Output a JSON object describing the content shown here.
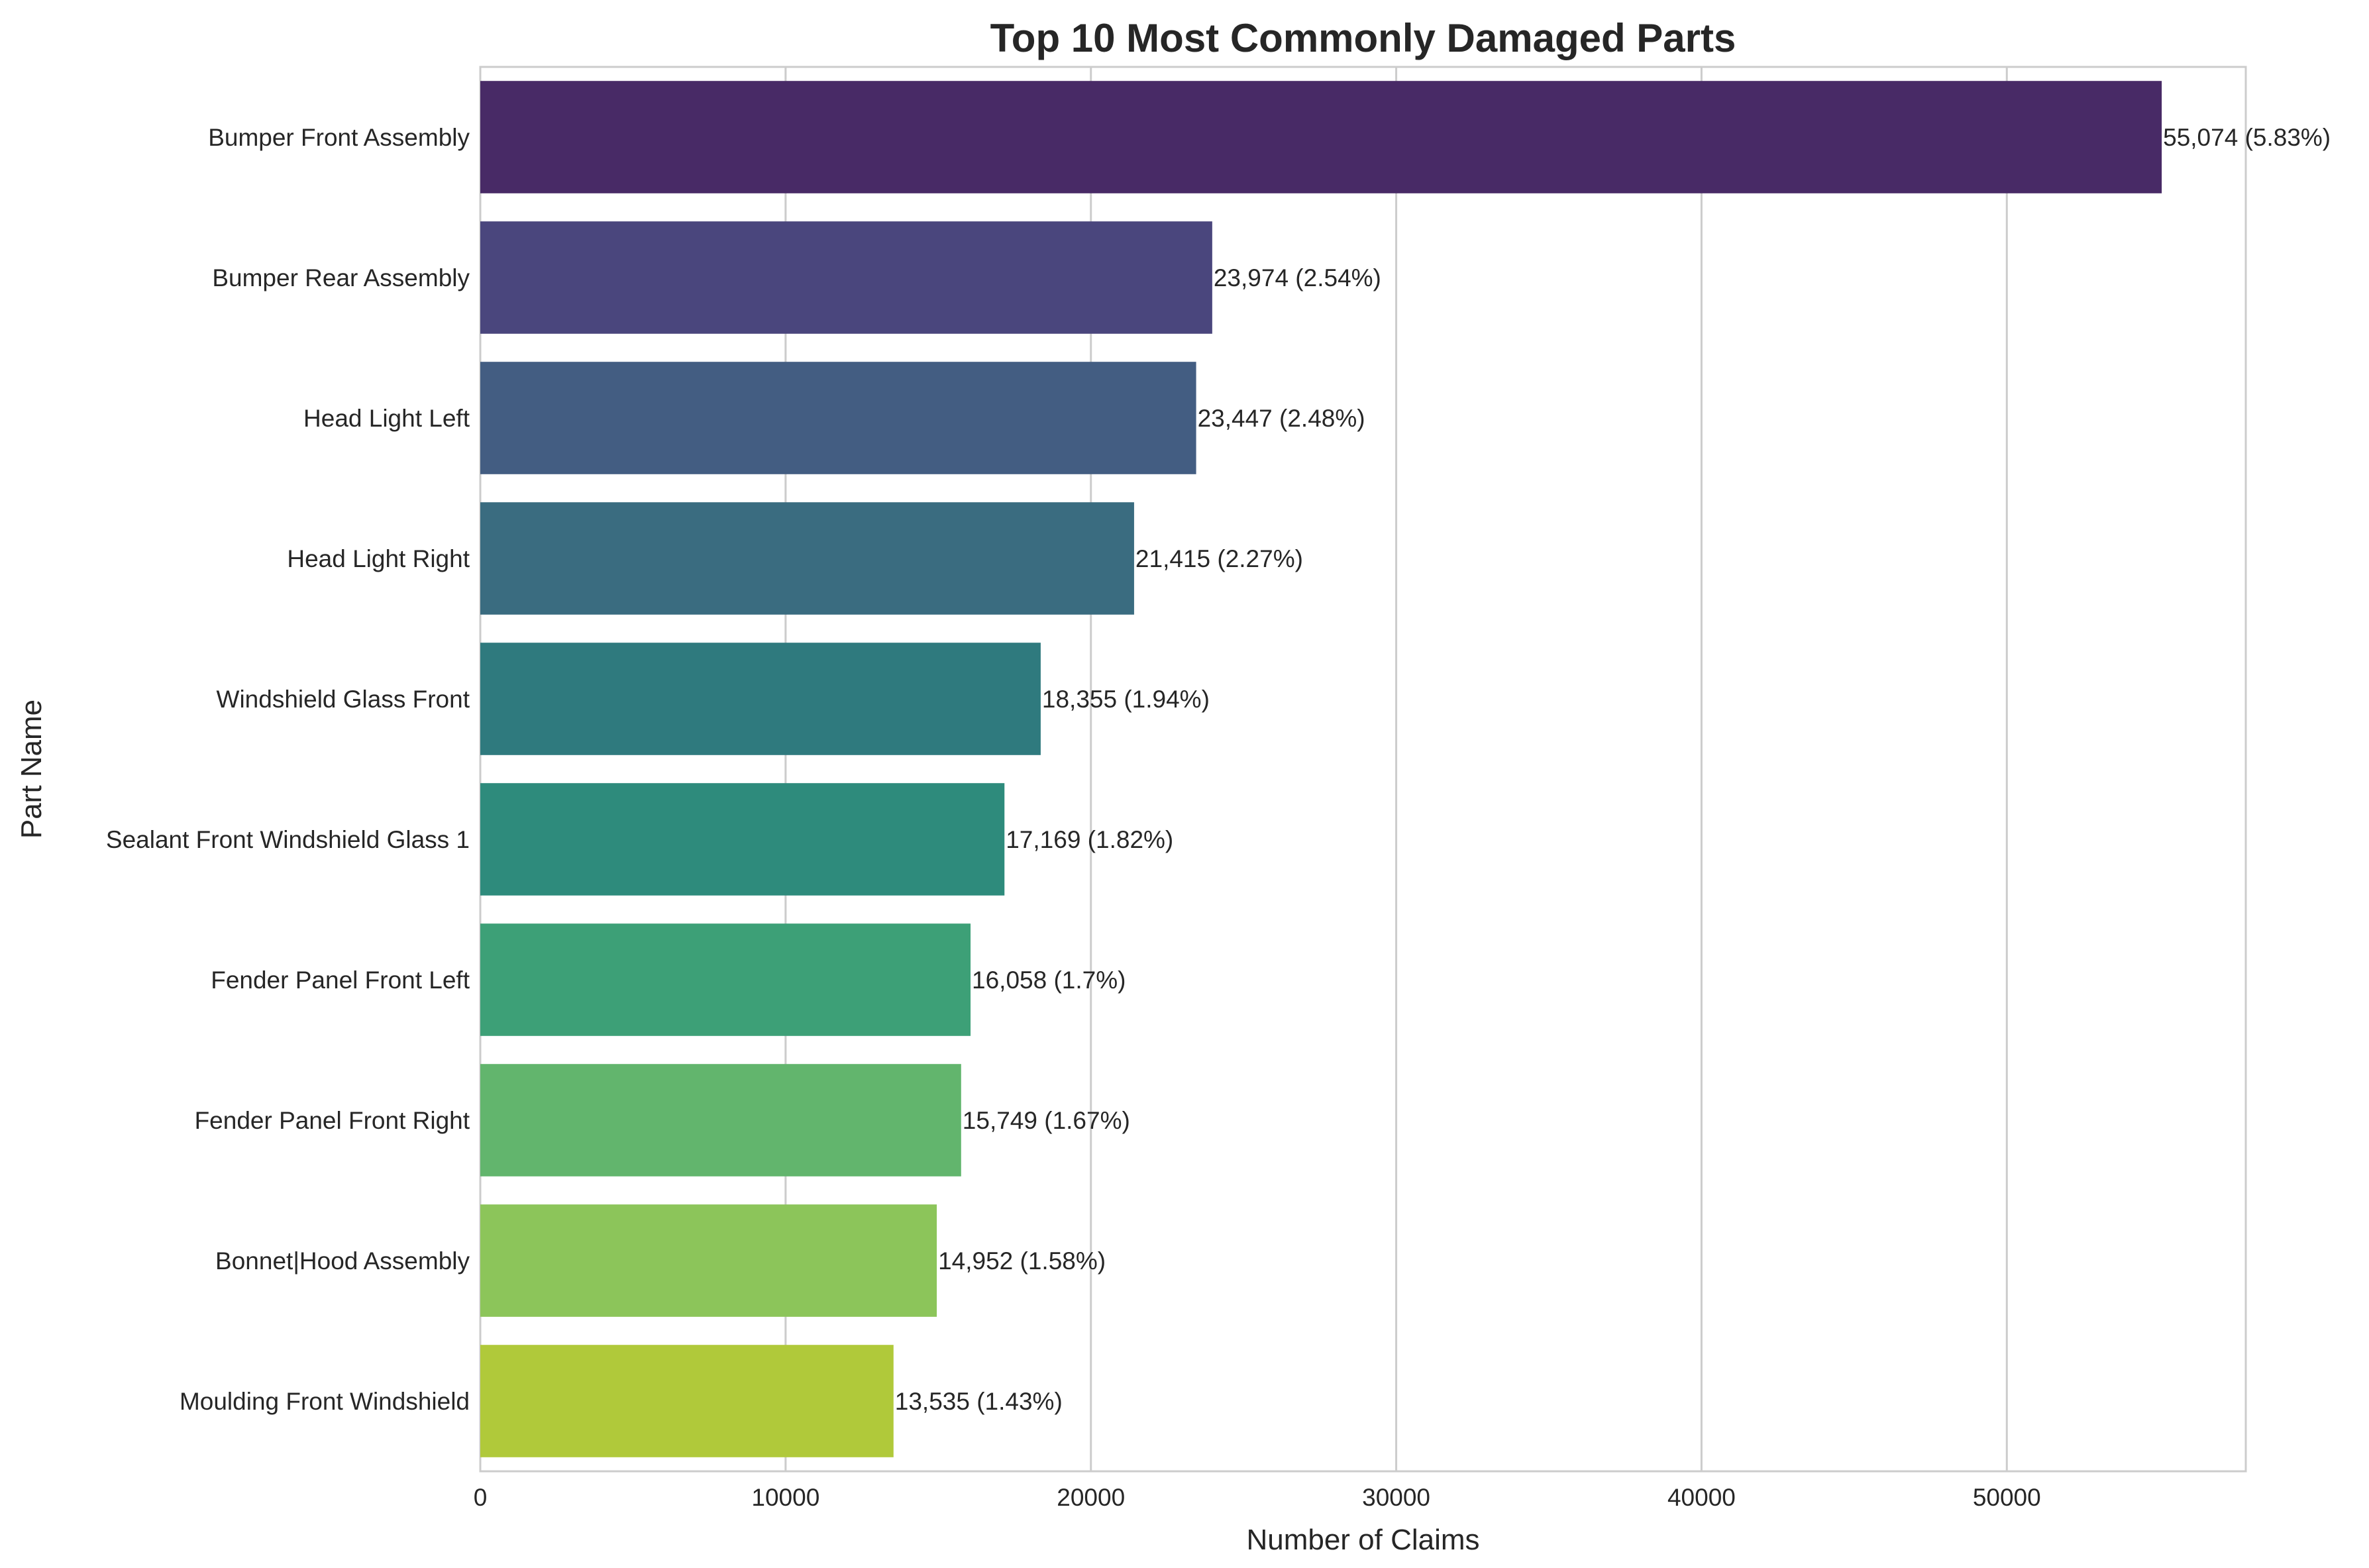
{
  "chart_data": {
    "type": "bar",
    "orientation": "horizontal",
    "title": "Top 10 Most Commonly Damaged Parts",
    "xlabel": "Number of Claims",
    "ylabel": "Part Name",
    "xlim": [
      0,
      57827
    ],
    "xticks": [
      0,
      10000,
      20000,
      30000,
      40000,
      50000
    ],
    "xtick_labels": [
      "0",
      "10000",
      "20000",
      "30000",
      "40000",
      "50000"
    ],
    "grid": "vertical",
    "categories": [
      "Bumper Front Assembly",
      "Bumper Rear Assembly",
      "Head Light Left",
      "Head Light Right",
      "Windshield Glass Front",
      "Sealant Front Windshield Glass 1",
      "Fender Panel Front Left",
      "Fender Panel Front Right",
      "Bonnet|Hood Assembly",
      "Moulding Front Windshield"
    ],
    "values": [
      55074,
      23974,
      23447,
      21415,
      18355,
      17169,
      16058,
      15749,
      14952,
      13535
    ],
    "data_labels": [
      "55,074 (5.83%)",
      "23,974 (2.54%)",
      "23,447 (2.48%)",
      "21,415 (2.27%)",
      "18,355 (1.94%)",
      "17,169 (1.82%)",
      "16,058 (1.7%)",
      "15,749 (1.67%)",
      "14,952 (1.58%)",
      "13,535 (1.43%)"
    ],
    "colors": [
      "#482a66",
      "#4a467d",
      "#435d82",
      "#3a6c80",
      "#2f7a7e",
      "#2e8b7c",
      "#3da077",
      "#62b56d",
      "#8cc55a",
      "#b0c93a"
    ]
  }
}
